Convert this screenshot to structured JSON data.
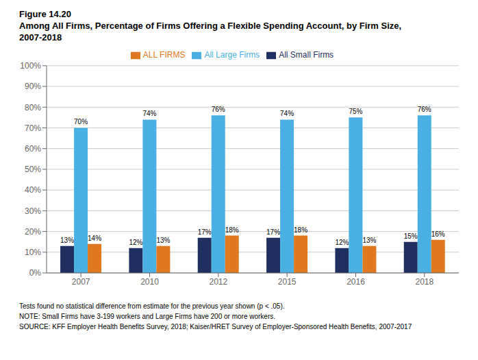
{
  "chart_data": {
    "type": "bar",
    "title": "Figure 14.20",
    "subtitle": [
      "Among All Firms, Percentage of Firms Offering a Flexible Spending Account, by Firm Size,",
      "2007-2018"
    ],
    "categories": [
      "2007",
      "2010",
      "2012",
      "2015",
      "2016",
      "2018"
    ],
    "series": [
      {
        "name": "All Small Firms",
        "color": "#1f3060",
        "values": [
          13,
          12,
          17,
          17,
          12,
          15
        ],
        "value_labels": [
          "13%",
          "12%",
          "17%",
          "17%",
          "12%",
          "15%"
        ]
      },
      {
        "name": "All Large Firms",
        "color": "#4ab0e4",
        "values": [
          70,
          74,
          76,
          74,
          75,
          76
        ],
        "value_labels": [
          "70%",
          "74%",
          "76%",
          "74%",
          "75%",
          "76%"
        ]
      },
      {
        "name": "ALL FIRMS",
        "color": "#e07820",
        "values": [
          14,
          13,
          18,
          18,
          13,
          16
        ],
        "value_labels": [
          "14%",
          "13%",
          "18%",
          "18%",
          "13%",
          "16%"
        ]
      }
    ],
    "ylim": [
      0,
      100
    ],
    "yticks": [
      {
        "value": 0,
        "label": "0%"
      },
      {
        "value": 10,
        "label": "10%"
      },
      {
        "value": 20,
        "label": "20%"
      },
      {
        "value": 30,
        "label": "30%"
      },
      {
        "value": 40,
        "label": "40%"
      },
      {
        "value": 50,
        "label": "50%"
      },
      {
        "value": 60,
        "label": "60%"
      },
      {
        "value": 70,
        "label": "70%"
      },
      {
        "value": 80,
        "label": "80%"
      },
      {
        "value": 90,
        "label": "90%"
      },
      {
        "value": 100,
        "label": "100%"
      }
    ],
    "grid": true,
    "legend": "top",
    "data_labels": true,
    "annotations": [
      "Tests found no statistical difference from estimate for the previous year shown (p < .05).",
      "NOTE: Small Firms have 3-199 workers and Large Firms have 200 or more workers.",
      "SOURCE: KFF Employer Health Benefits Survey, 2018; Kaiser/HRET Survey of Employer-Sponsored Health Benefits, 2007-2017"
    ]
  }
}
